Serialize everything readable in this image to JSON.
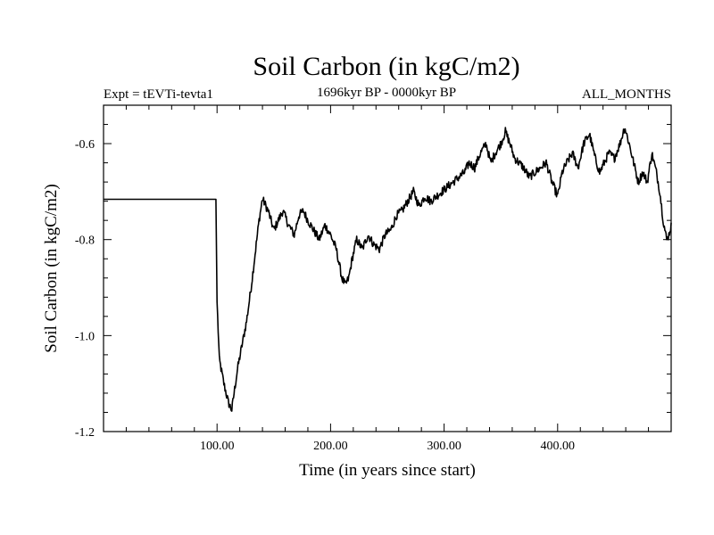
{
  "chart_data": {
    "type": "line",
    "title": "Soil Carbon (in kgC/m2)",
    "subtitle_left": "Expt = tEVTi-tevta1",
    "subtitle_center": "1696kyr BP - 0000kyr BP",
    "subtitle_right": "ALL_MONTHS",
    "xlabel": "Time (in years since start)",
    "ylabel": "Soil Carbon (in kgC/m2)",
    "xlim": [
      0,
      500
    ],
    "ylim": [
      -1.2,
      -0.52
    ],
    "xticks": [
      100,
      200,
      300,
      400
    ],
    "xtick_labels": [
      "100.00",
      "200.00",
      "300.00",
      "400.00"
    ],
    "yticks": [
      -1.2,
      -1.0,
      -0.8,
      -0.6
    ],
    "ytick_labels": [
      "-1.2",
      "-1.0",
      "-0.8",
      "-0.6"
    ],
    "grid": false,
    "line_color": "#000000",
    "series": [
      {
        "name": "Soil Carbon",
        "anchors": [
          [
            0,
            -0.716
          ],
          [
            99,
            -0.716
          ],
          [
            100,
            -0.93
          ],
          [
            102,
            -1.05
          ],
          [
            106,
            -1.1
          ],
          [
            110,
            -1.14
          ],
          [
            113,
            -1.155
          ],
          [
            115,
            -1.12
          ],
          [
            118,
            -1.07
          ],
          [
            122,
            -1.02
          ],
          [
            126,
            -0.97
          ],
          [
            130,
            -0.9
          ],
          [
            134,
            -0.82
          ],
          [
            137,
            -0.76
          ],
          [
            140,
            -0.715
          ],
          [
            145,
            -0.74
          ],
          [
            150,
            -0.78
          ],
          [
            154,
            -0.76
          ],
          [
            158,
            -0.74
          ],
          [
            163,
            -0.77
          ],
          [
            168,
            -0.79
          ],
          [
            172,
            -0.75
          ],
          [
            176,
            -0.74
          ],
          [
            180,
            -0.76
          ],
          [
            185,
            -0.78
          ],
          [
            190,
            -0.8
          ],
          [
            195,
            -0.77
          ],
          [
            200,
            -0.79
          ],
          [
            205,
            -0.82
          ],
          [
            210,
            -0.88
          ],
          [
            213,
            -0.895
          ],
          [
            216,
            -0.88
          ],
          [
            219,
            -0.84
          ],
          [
            223,
            -0.8
          ],
          [
            228,
            -0.82
          ],
          [
            233,
            -0.79
          ],
          [
            238,
            -0.81
          ],
          [
            243,
            -0.82
          ],
          [
            248,
            -0.79
          ],
          [
            253,
            -0.78
          ],
          [
            258,
            -0.75
          ],
          [
            263,
            -0.74
          ],
          [
            268,
            -0.72
          ],
          [
            273,
            -0.7
          ],
          [
            278,
            -0.73
          ],
          [
            283,
            -0.71
          ],
          [
            288,
            -0.72
          ],
          [
            293,
            -0.71
          ],
          [
            298,
            -0.7
          ],
          [
            303,
            -0.69
          ],
          [
            308,
            -0.68
          ],
          [
            313,
            -0.67
          ],
          [
            318,
            -0.66
          ],
          [
            322,
            -0.64
          ],
          [
            327,
            -0.65
          ],
          [
            332,
            -0.62
          ],
          [
            337,
            -0.6
          ],
          [
            341,
            -0.64
          ],
          [
            345,
            -0.62
          ],
          [
            350,
            -0.6
          ],
          [
            354,
            -0.575
          ],
          [
            358,
            -0.6
          ],
          [
            362,
            -0.63
          ],
          [
            366,
            -0.64
          ],
          [
            370,
            -0.65
          ],
          [
            375,
            -0.67
          ],
          [
            380,
            -0.66
          ],
          [
            385,
            -0.65
          ],
          [
            390,
            -0.64
          ],
          [
            395,
            -0.68
          ],
          [
            400,
            -0.71
          ],
          [
            404,
            -0.66
          ],
          [
            408,
            -0.64
          ],
          [
            413,
            -0.62
          ],
          [
            418,
            -0.65
          ],
          [
            423,
            -0.6
          ],
          [
            428,
            -0.58
          ],
          [
            433,
            -0.63
          ],
          [
            437,
            -0.66
          ],
          [
            441,
            -0.64
          ],
          [
            445,
            -0.62
          ],
          [
            450,
            -0.63
          ],
          [
            455,
            -0.6
          ],
          [
            459,
            -0.565
          ],
          [
            463,
            -0.6
          ],
          [
            467,
            -0.64
          ],
          [
            471,
            -0.68
          ],
          [
            475,
            -0.66
          ],
          [
            479,
            -0.68
          ],
          [
            483,
            -0.62
          ],
          [
            487,
            -0.66
          ],
          [
            490,
            -0.7
          ],
          [
            493,
            -0.76
          ],
          [
            496,
            -0.8
          ],
          [
            498,
            -0.79
          ],
          [
            500,
            -0.77
          ]
        ]
      }
    ]
  }
}
